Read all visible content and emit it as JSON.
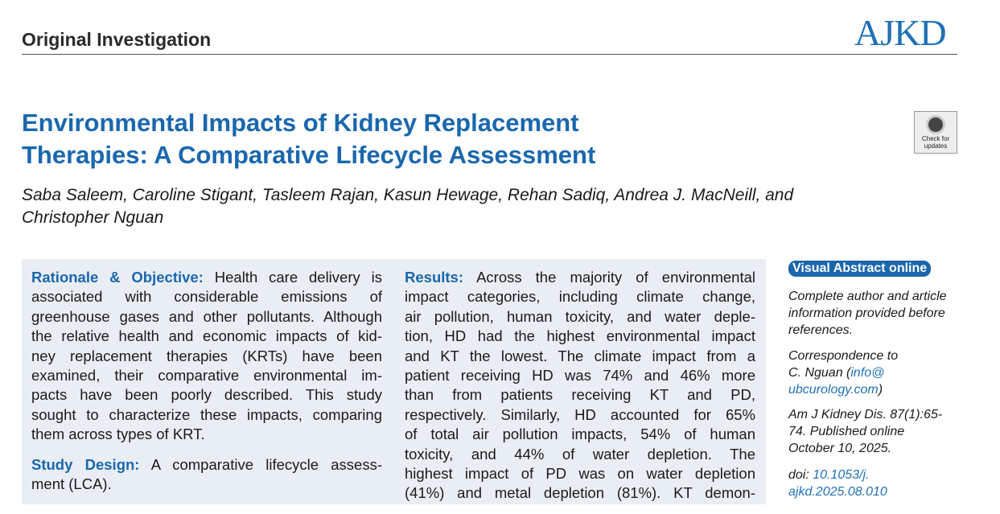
{
  "header": {
    "section": "Original Investigation",
    "journal": "AJKD"
  },
  "article": {
    "title_lines": [
      "Environmental Impacts of Kidney Replacement",
      "Therapies: A Comparative Lifecycle Assessment"
    ],
    "crossmark": [
      "Check for",
      "updates"
    ],
    "author_lines": [
      "Saba Saleem, Caroline Stigant, Tasleem Rajan, Kasun Hewage, Rehan Sadiq, Andrea J. MacNeill, and",
      "Christopher Nguan"
    ]
  },
  "abstract": {
    "left": [
      {
        "label": "Rationale & Objective:",
        "lines": [
          "Health care delivery is",
          "associated with considerable emissions of",
          "greenhouse gases and other pollutants. Although",
          "the relative health and economic impacts of kid-",
          "ney replacement therapies (KRTs) have been",
          "examined, their comparative environmental im-",
          "pacts have been poorly described. This study",
          "sought to characterize these impacts, comparing",
          "them across types of KRT."
        ]
      },
      {
        "label": "Study Design:",
        "lines": [
          "A comparative lifecycle assess-",
          "ment (LCA)."
        ]
      }
    ],
    "right": [
      {
        "label": "Results:",
        "lines": [
          "Across the majority of environmental",
          "impact categories, including climate change,",
          "air pollution, human toxicity, and water deple-",
          "tion, HD had the highest environmental impact",
          "and KT the lowest. The climate impact from a",
          "patient receiving HD was 74% and 46% more",
          "than from patients receiving KT and PD,",
          "respectively. Similarly, HD accounted for 65%",
          "of total air pollution impacts, 54% of human",
          "toxicity, and 44% of water depletion. The",
          "highest impact of PD was on water depletion",
          "(41%) and metal depletion (81%). KT demon-"
        ]
      }
    ]
  },
  "sidebar": {
    "visual_abstract": "Visual Abstract online",
    "info_lines": [
      "Complete author and article",
      "information provided before",
      "references."
    ],
    "correspondence": {
      "label": "Correspondence to",
      "name": "C. Nguan (",
      "email_part1": "info@",
      "email_part2": "ubcurology.com",
      "close": ")"
    },
    "citation_lines": [
      "Am J Kidney Dis. 87(1):65-",
      "74. Published online",
      "October 10, 2025."
    ],
    "doi": {
      "label": "doi:",
      "part1": "10.1053/j.",
      "part2": "ajkd.2025.08.010"
    }
  }
}
